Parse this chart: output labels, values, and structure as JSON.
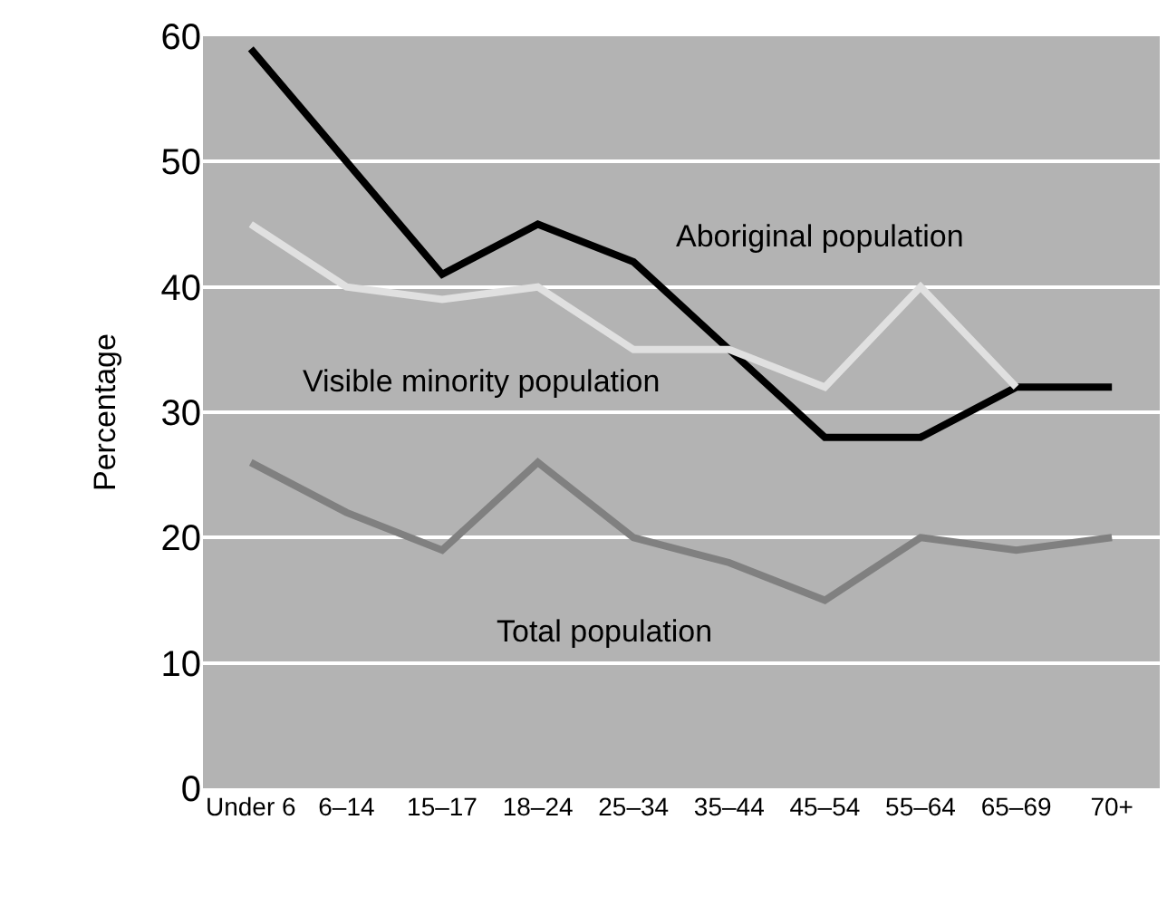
{
  "chart_data": {
    "type": "line",
    "ylabel": "Percentage",
    "categories": [
      "Under 6",
      "6–14",
      "15–17",
      "18–24",
      "25–34",
      "35–44",
      "45–54",
      "55–64",
      "65–69",
      "70+"
    ],
    "series": [
      {
        "name": "Aboriginal population",
        "color": "#000000",
        "values": [
          59,
          50,
          41,
          45,
          42,
          35,
          28,
          28,
          32,
          32
        ]
      },
      {
        "name": "Visible minority population",
        "color": "#e0e0e0",
        "values": [
          45,
          40,
          39,
          40,
          35,
          35,
          32,
          40,
          32,
          null
        ]
      },
      {
        "name": "Total population",
        "color": "#808080",
        "values": [
          26,
          22,
          19,
          26,
          20,
          18,
          15,
          20,
          19,
          20
        ]
      }
    ],
    "ylim": [
      0,
      60
    ],
    "yticks": [
      0,
      10,
      20,
      30,
      40,
      50,
      60
    ],
    "grid": "y",
    "legend": false,
    "marker": "none",
    "line_style": "solid"
  }
}
